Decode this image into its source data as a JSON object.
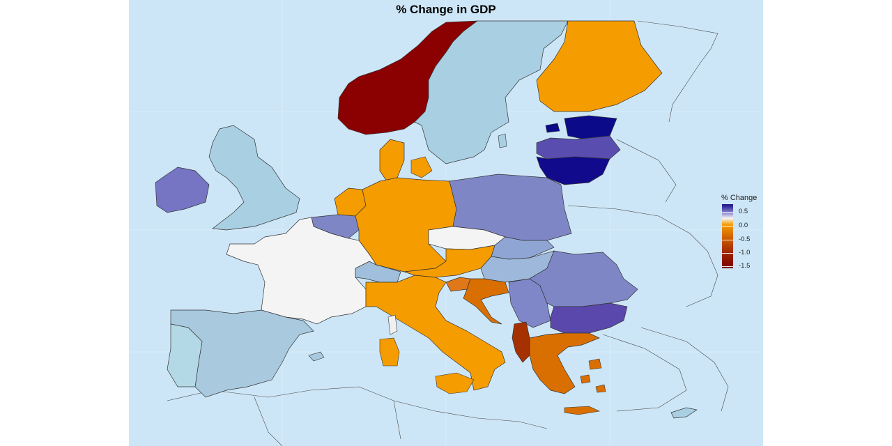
{
  "title": "% Change in GDP",
  "legend": {
    "title": "% Change",
    "ticks": [
      "0.5",
      "0.0",
      "-0.5",
      "-1.0",
      "-1.5"
    ]
  },
  "colors": {
    "background": "#cde6f7",
    "no_data": "#cde6f7",
    "strong_positive": "#0b0b8a",
    "positive": "#5a4db0",
    "mild_positive": "#7f86c6",
    "slight_positive": "#a9c8df",
    "zero": "#f4f4f4",
    "slight_negative": "#f59c00",
    "negative": "#d96f00",
    "strong_negative": "#a53000",
    "most_negative": "#8b0000"
  },
  "chart_data": {
    "type": "choropleth",
    "title": "% Change in GDP",
    "legend_title": "% Change",
    "legend_ticks": [
      0.5,
      0.0,
      -0.5,
      -1.0,
      -1.5
    ],
    "legend_range": [
      -1.6,
      0.7
    ],
    "legend_placement": "right",
    "regions": [
      {
        "name": "Norway",
        "value": -1.5
      },
      {
        "name": "Sweden",
        "value": 0.15
      },
      {
        "name": "Finland",
        "value": -0.2
      },
      {
        "name": "Estonia",
        "value": 0.7
      },
      {
        "name": "Latvia",
        "value": 0.55
      },
      {
        "name": "Lithuania",
        "value": 0.65
      },
      {
        "name": "United Kingdom",
        "value": 0.15
      },
      {
        "name": "Ireland",
        "value": 0.4
      },
      {
        "name": "Denmark",
        "value": -0.2
      },
      {
        "name": "Netherlands",
        "value": -0.2
      },
      {
        "name": "Belgium",
        "value": 0.35
      },
      {
        "name": "Germany",
        "value": -0.2
      },
      {
        "name": "Poland",
        "value": 0.35
      },
      {
        "name": "Czechia",
        "value": 0.0
      },
      {
        "name": "Slovakia",
        "value": 0.3
      },
      {
        "name": "Hungary",
        "value": 0.2
      },
      {
        "name": "Austria",
        "value": -0.2
      },
      {
        "name": "Switzerland",
        "value": 0.15
      },
      {
        "name": "France",
        "value": 0.0
      },
      {
        "name": "Spain",
        "value": 0.15
      },
      {
        "name": "Portugal",
        "value": 0.1
      },
      {
        "name": "Italy",
        "value": -0.2
      },
      {
        "name": "Slovenia",
        "value": -0.3
      },
      {
        "name": "Croatia",
        "value": -0.5
      },
      {
        "name": "Romania",
        "value": 0.35
      },
      {
        "name": "Serbia",
        "value": 0.3
      },
      {
        "name": "Bulgaria",
        "value": 0.5
      },
      {
        "name": "Albania",
        "value": -1.0
      },
      {
        "name": "Greece",
        "value": -0.5
      },
      {
        "name": "Cyprus",
        "value": 0.15
      }
    ]
  }
}
